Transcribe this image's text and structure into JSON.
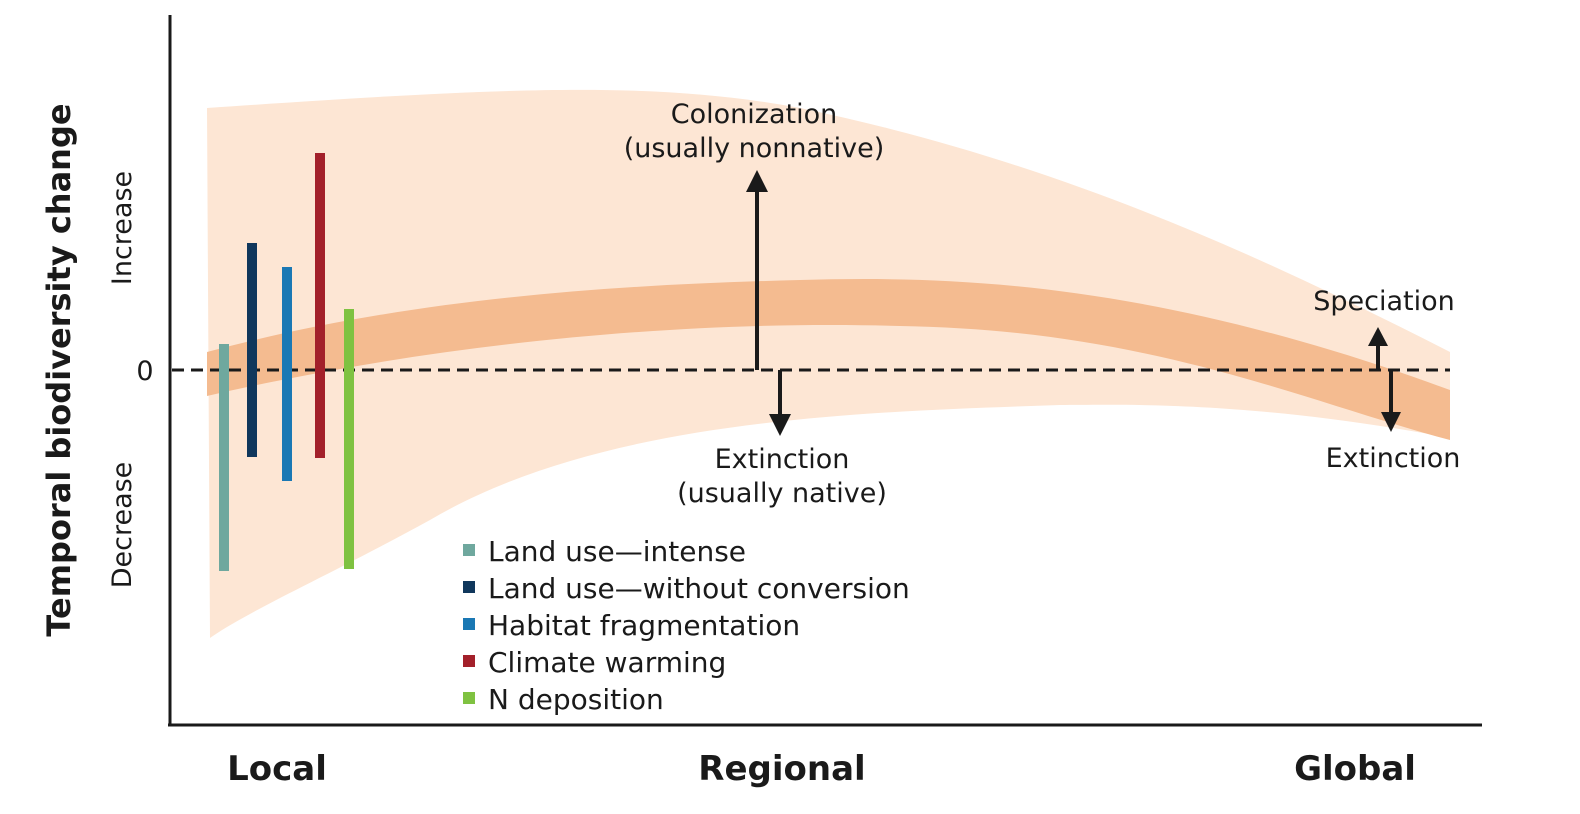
{
  "colors": {
    "envelope": "#fde6d4",
    "trend_band": "#f4bb90",
    "axis": "#1a1a1a",
    "arrow": "#1a1a1a"
  },
  "axes": {
    "y_title": "Temporal biodiversity change",
    "y_increase": "Increase",
    "y_decrease": "Decrease",
    "zero_label": "0",
    "x_categories": [
      "Local",
      "Regional",
      "Global"
    ]
  },
  "annotations": {
    "colonization_line1": "Colonization",
    "colonization_line2": "(usually nonnative)",
    "extinction_regional_line1": "Extinction",
    "extinction_regional_line2": "(usually native)",
    "speciation": "Speciation",
    "extinction_global": "Extinction"
  },
  "legend": [
    {
      "label": "Land use—intense",
      "color": "#6fa89e"
    },
    {
      "label": "Land use—without conversion",
      "color": "#10375c"
    },
    {
      "label": "Habitat fragmentation",
      "color": "#1a78b4"
    },
    {
      "label": "Climate warming",
      "color": "#a3202a"
    },
    {
      "label": "N deposition",
      "color": "#7fc241"
    }
  ]
}
